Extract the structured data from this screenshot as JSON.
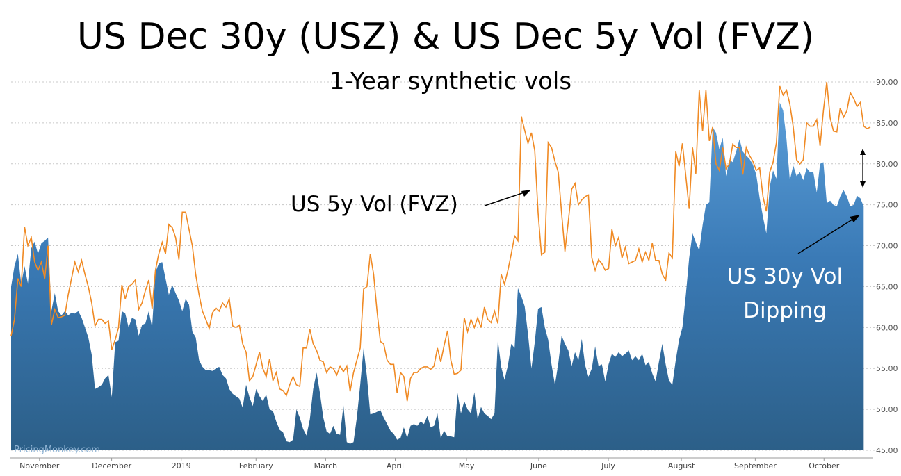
{
  "chart_data": {
    "type": "area",
    "title": "US Dec 30y (USZ) & US Dec 5y Vol (FVZ)",
    "subtitle": "1-Year synthetic vols",
    "watermark": "PricingMonkey.com",
    "ylim": [
      45,
      90
    ],
    "yticks": [
      "45.00",
      "50.00",
      "55.00",
      "60.00",
      "65.00",
      "70.00",
      "75.00",
      "80.00",
      "85.00",
      "90.00"
    ],
    "xticks": [
      "November",
      "December",
      "2019",
      "February",
      "March",
      "April",
      "May",
      "June",
      "July",
      "August",
      "September",
      "October"
    ],
    "grid": true,
    "colors": {
      "area": "#2e6fa8",
      "area_light": "#5a9ad4",
      "line": "#f08a24"
    },
    "annotations": {
      "fvz_label": "US 5y Vol (FVZ)",
      "usz_label_line1": "US 30y Vol",
      "usz_label_line2": "Dipping"
    },
    "series": [
      {
        "type": "line",
        "values": [
          59,
          61,
          66,
          65,
          72.3,
          70,
          71,
          68,
          67,
          68,
          66,
          70,
          60.3,
          62.2,
          61.2,
          61.3,
          61.5,
          64,
          66,
          68,
          66.8,
          68.2,
          66.5,
          65,
          63,
          60.2,
          61,
          61,
          60.5,
          60.8,
          57.3,
          58.5,
          60,
          65.2,
          63.5,
          65,
          65.3,
          65.8,
          62.2,
          63,
          64.5,
          65.8,
          62.3,
          67,
          69,
          70.4,
          69,
          72.6,
          72.2,
          71,
          68.3,
          74.1,
          74.1,
          72,
          70,
          66.5,
          64,
          62,
          61,
          59.9,
          61.8,
          62.4,
          62,
          63,
          62.5,
          63.5,
          60.2,
          60,
          60.3,
          58,
          57,
          53.5,
          54,
          55.5,
          57,
          55,
          54,
          56.2,
          53.5,
          54.5,
          52.5,
          52.3,
          51.7,
          53,
          54,
          53,
          52.8,
          57.5,
          57.5,
          59.8,
          58,
          57.2,
          56,
          55.8,
          54.5,
          55.2,
          55,
          54.2,
          55.3,
          54.6,
          55.3,
          52.2,
          54.5,
          56,
          57.5,
          64.7,
          65,
          69,
          66.5,
          62,
          58.3,
          58,
          56,
          55.5,
          55.5,
          52,
          54.5,
          54,
          51,
          53.8,
          54.5,
          54.5,
          55,
          55.2,
          55.2,
          54.9,
          55.3,
          57.5,
          55.8,
          57.8,
          59.6,
          56,
          54.3,
          54.4,
          54.8,
          61.2,
          59.5,
          61,
          60,
          61.2,
          60,
          62.5,
          61,
          60.6,
          62,
          60.5,
          66.5,
          65.3,
          67,
          69,
          71.2,
          70.6,
          85.8,
          84.1,
          82.5,
          83.8,
          81.6,
          74,
          68.9,
          69.2,
          82.6,
          82,
          80.3,
          79,
          74,
          69.3,
          73,
          76.9,
          77.6,
          75,
          75.6,
          76,
          76.2,
          68.5,
          67,
          68.3,
          67.8,
          67,
          67.2,
          72,
          70,
          71,
          68.5,
          69.8,
          67.8,
          68,
          68.2,
          69.6,
          68,
          69.2,
          68.2,
          70.3,
          68.2,
          68.2,
          66.5,
          65.8,
          69.1,
          68.5,
          81.5,
          79.7,
          82.5,
          78.5,
          74.5,
          82,
          78.8,
          89,
          84,
          89,
          82.8,
          84.5,
          80,
          79.2,
          82,
          79.4,
          80,
          82.4,
          82,
          82,
          78.7,
          82,
          81,
          80.3,
          79.2,
          79.5,
          76,
          74.2,
          79,
          80.2,
          82.6,
          89.5,
          88.4,
          89,
          87.3,
          84.5,
          80.5,
          80,
          80.5,
          85,
          84.6,
          84.6,
          85.4,
          82.2,
          86.5,
          90,
          85.6,
          84,
          83.9,
          86.8,
          85.7,
          86.5,
          88.7,
          88,
          87,
          87.5,
          84.6,
          84.3,
          84.5
        ]
      },
      {
        "type": "area",
        "values": [
          65,
          67.5,
          69,
          65.3,
          67.5,
          65.4,
          69.7,
          70.5,
          69,
          70.3,
          70.6,
          71,
          62,
          64.2,
          62,
          61.5,
          62,
          61.5,
          61.8,
          61.7,
          62,
          61.2,
          60,
          58.8,
          56.7,
          52.5,
          52.7,
          53,
          53.8,
          54.2,
          51.5,
          58.2,
          58.4,
          62,
          61.7,
          60,
          61.2,
          61,
          59,
          60.3,
          60.5,
          62,
          60,
          66.8,
          67.8,
          68,
          66,
          64,
          65.2,
          64.2,
          63.3,
          62,
          63.5,
          62.8,
          59.5,
          58.8,
          56,
          55.2,
          54.8,
          54.8,
          54.7,
          55,
          55.2,
          54.2,
          53.8,
          52.5,
          51.9,
          51.6,
          51.3,
          50.2,
          53,
          51.5,
          50.4,
          52.5,
          51.6,
          51,
          51.8,
          50,
          49.8,
          48.5,
          47.5,
          47.2,
          46.1,
          46,
          46.3,
          50,
          49,
          47.6,
          46.8,
          48.8,
          52.5,
          54.5,
          52,
          49,
          47.3,
          47,
          48,
          47,
          46.9,
          50.5,
          46,
          45.8,
          46,
          49,
          53,
          57.5,
          54,
          49.4,
          49.5,
          49.7,
          49.9,
          49,
          48.2,
          47.4,
          47,
          46.3,
          46.5,
          47.8,
          46.5,
          48,
          48.2,
          48,
          48.5,
          48.2,
          49.2,
          47.8,
          48,
          49.5,
          46.5,
          47.4,
          46.7,
          46.7,
          46.6,
          52,
          49.5,
          51,
          50,
          49.5,
          52.1,
          48.8,
          50.3,
          49.5,
          49.2,
          48.8,
          49.5,
          58.5,
          55.2,
          53.6,
          55.4,
          58,
          57.5,
          64.8,
          63.8,
          62.6,
          59.2,
          55,
          58.2,
          62.3,
          62.5,
          60,
          58.5,
          55.5,
          53,
          55.6,
          59,
          58,
          57.2,
          55.3,
          57,
          56,
          58.6,
          55.4,
          54,
          55,
          57.7,
          55.3,
          55.5,
          53.4,
          55.5,
          56.8,
          56.4,
          57,
          56.5,
          56.8,
          57.2,
          56,
          56.5,
          56,
          56.8,
          55.4,
          55.8,
          54.4,
          53.4,
          55.8,
          58,
          55.5,
          53.5,
          53,
          56,
          58.5,
          60,
          64,
          68.5,
          71.5,
          70.4,
          69.4,
          72.5,
          75,
          75.3,
          84.5,
          83.8,
          81.8,
          83.2,
          78.5,
          80.5,
          80.2,
          81.5,
          83,
          81.5,
          81,
          80.6,
          79.9,
          78.7,
          75.8,
          73.5,
          71.5,
          77.2,
          79.2,
          78.2,
          87.5,
          86.5,
          83,
          78,
          79.8,
          78.5,
          79,
          78,
          79.5,
          79,
          79,
          76.5,
          80,
          80.2,
          75.2,
          75.5,
          75,
          74.8,
          76,
          76.8,
          76,
          74.8,
          75,
          76.1,
          75.8,
          74.8
        ]
      }
    ]
  }
}
